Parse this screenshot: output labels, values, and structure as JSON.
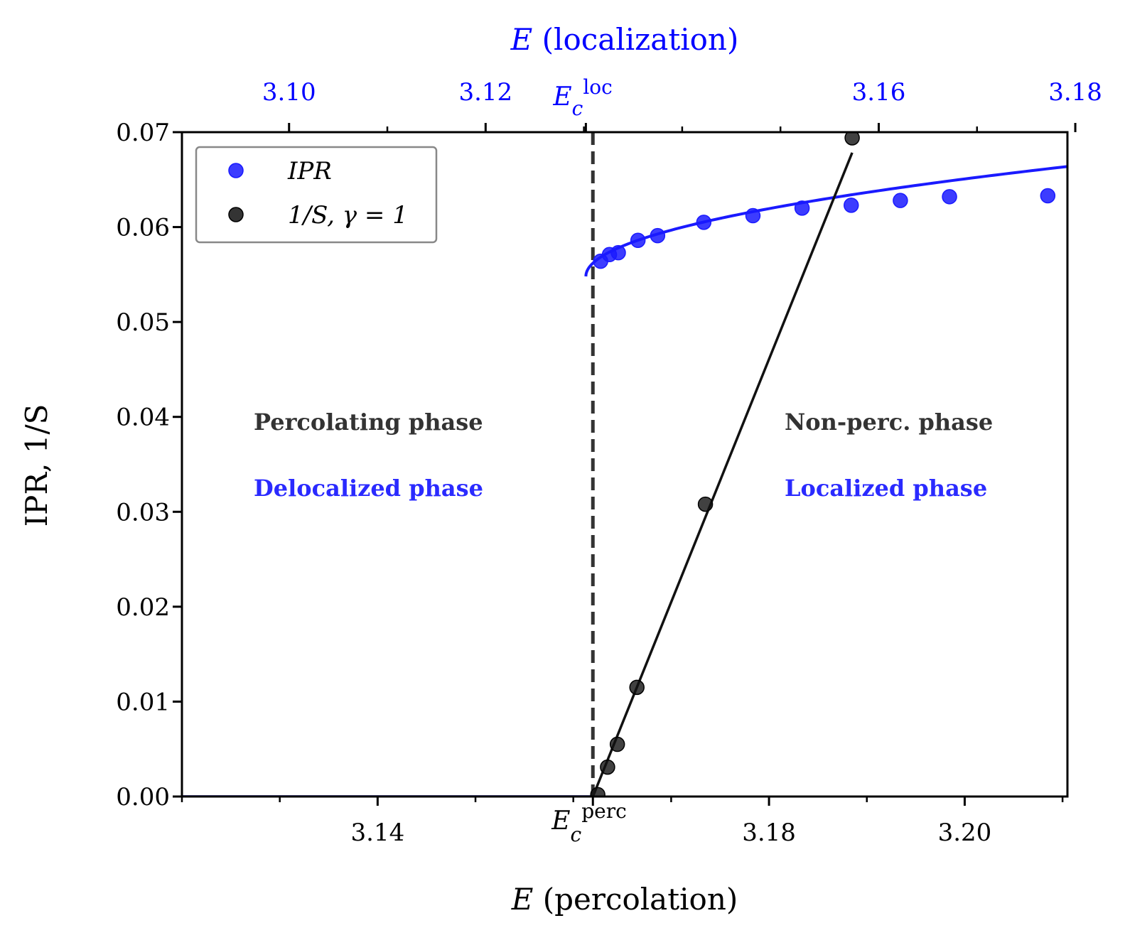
{
  "chart_data": {
    "type": "line",
    "title": "",
    "ylabel": "IPR, 1/S",
    "ylim": [
      0.0,
      0.07
    ],
    "yticks": [
      "0.00",
      "0.01",
      "0.02",
      "0.03",
      "0.04",
      "0.05",
      "0.06",
      "0.07"
    ],
    "bottom_axis": {
      "label_var": "E",
      "label_rest": " (percolation)",
      "xlim": [
        3.12,
        3.2105
      ],
      "ticks": [
        {
          "v": 3.14,
          "label": "3.14"
        },
        {
          "v": 3.18,
          "label": "3.18"
        },
        {
          "v": 3.2,
          "label": "3.20"
        }
      ],
      "minor_ticks": [
        3.12,
        3.13,
        3.15,
        3.16,
        3.17,
        3.19,
        3.21
      ],
      "critical": {
        "v": 3.162,
        "sym": "E",
        "sub": "c",
        "sup": "perc"
      }
    },
    "top_axis": {
      "label_var": "E",
      "label_rest": " (localization)",
      "xlim": [
        3.0891,
        3.1792
      ],
      "ticks": [
        {
          "v": 3.1,
          "label": "3.10"
        },
        {
          "v": 3.12,
          "label": "3.12"
        },
        {
          "v": 3.16,
          "label": "3.16"
        },
        {
          "v": 3.18,
          "label": "3.18"
        }
      ],
      "minor_ticks": [
        3.11,
        3.13,
        3.14,
        3.15,
        3.17
      ],
      "critical": {
        "v": 3.1302,
        "sym": "E",
        "sub": "c",
        "sup": "loc"
      }
    },
    "series": [
      {
        "name": "IPR",
        "axis": "top",
        "color": "#1a1aff",
        "points": [
          [
            3.1317,
            0.0564
          ],
          [
            3.1326,
            0.0571
          ],
          [
            3.1335,
            0.0573
          ],
          [
            3.1355,
            0.0586
          ],
          [
            3.1375,
            0.0591
          ],
          [
            3.1422,
            0.0605
          ],
          [
            3.1472,
            0.0612
          ],
          [
            3.1522,
            0.062
          ],
          [
            3.1572,
            0.0623
          ],
          [
            3.1622,
            0.0628
          ],
          [
            3.1672,
            0.0632
          ],
          [
            3.1772,
            0.0633
          ]
        ],
        "fit": {
          "y0": 0.0548,
          "x0": 3.1302,
          "A": 0.0117,
          "exp": 0.5
        }
      },
      {
        "name": "1/S, γ=1",
        "axis": "bottom",
        "color": "#111111",
        "points": [
          [
            3.1625,
            0.0002
          ],
          [
            3.1635,
            0.0031
          ],
          [
            3.1645,
            0.0055
          ],
          [
            3.1665,
            0.0115
          ],
          [
            3.1735,
            0.0308
          ],
          [
            3.1885,
            0.0694
          ]
        ],
        "fit": {
          "x0": 3.162,
          "slope": 2.56,
          "xmax": 3.1885
        }
      }
    ],
    "legend": {
      "position": "top-left",
      "entries": [
        {
          "series": 0,
          "label": "IPR"
        },
        {
          "series": 1,
          "label": "1/S,  γ = 1"
        }
      ]
    },
    "annotations": {
      "left_black": "Percolating phase",
      "left_blue": "Delocalized phase",
      "right_black": "Non-perc. phase",
      "right_blue": "Localized phase"
    },
    "colors": {
      "top_axis": "#0000ff",
      "annotation_black": "#333333",
      "annotation_blue": "#2a2aff",
      "dashed_line": "#333333"
    }
  }
}
